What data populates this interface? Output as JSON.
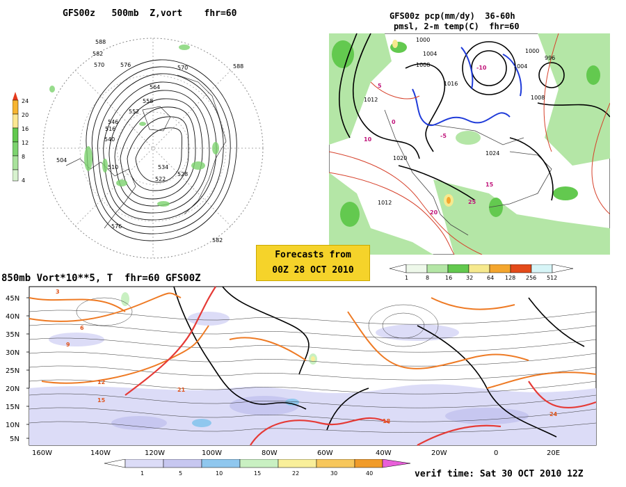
{
  "panel_500mb": {
    "title": "GFS00z   500mb  Z,vort    fhr=60",
    "colorbar": [
      {
        "label": "24",
        "color": "#e53a1c"
      },
      {
        "label": "20",
        "color": "#f7b531"
      },
      {
        "label": "16",
        "color": "#fce792"
      },
      {
        "label": "12",
        "color": "#7dd36f"
      },
      {
        "label": "8",
        "color": "#a9e29c"
      },
      {
        "label": "4",
        "color": "#d8f2cf"
      }
    ],
    "contour_labels": [
      "588",
      "582",
      "570",
      "576",
      "564",
      "558",
      "552",
      "546",
      "540",
      "534",
      "528",
      "522",
      "516",
      "510",
      "504",
      "570",
      "576",
      "582",
      "588"
    ]
  },
  "panel_pcp": {
    "title_line1": "GFS00z pcp(mm/dy)  36-60h",
    "title_line2": "pmsl, 2-m temp(C)  fhr=60",
    "colorbar": [
      {
        "label": "1",
        "color": "#eef8ea"
      },
      {
        "label": "8",
        "color": "#b4e6a6"
      },
      {
        "label": "16",
        "color": "#63c94f"
      },
      {
        "label": "32",
        "color": "#f6e98e"
      },
      {
        "label": "64",
        "color": "#f4a62e"
      },
      {
        "label": "128",
        "color": "#e44b1a"
      },
      {
        "label": "256",
        "color": "#d7f5f7"
      },
      {
        "label": "512",
        "color": "#ffffff"
      }
    ],
    "isobar_labels": [
      "1000",
      "1004",
      "1008",
      "1012",
      "1016",
      "1020",
      "1024",
      "1012",
      "1008",
      "1004",
      "1000",
      "996"
    ],
    "temp_labels": [
      "-10",
      "-5",
      "0",
      "5",
      "10",
      "15",
      "20",
      "25"
    ]
  },
  "forecast_box": {
    "line1": "Forecasts from",
    "line2": "00Z 28 OCT 2010"
  },
  "panel_850mb": {
    "title": "850mb Vort*10**5, T  fhr=60 GFS00Z",
    "lat_labels": [
      "45N",
      "40N",
      "35N",
      "30N",
      "25N",
      "20N",
      "15N",
      "10N",
      "5N"
    ],
    "lon_labels": [
      "160W",
      "140W",
      "120W",
      "100W",
      "80W",
      "60W",
      "40W",
      "20W",
      "0",
      "20E"
    ],
    "colorbar": [
      {
        "label": "1",
        "color": "#dcdcf7"
      },
      {
        "label": "5",
        "color": "#c7c7f0"
      },
      {
        "label": "10",
        "color": "#8fc7ee"
      },
      {
        "label": "15",
        "color": "#c9f0c2"
      },
      {
        "label": "22",
        "color": "#f9ef9a"
      },
      {
        "label": "30",
        "color": "#f7c75c"
      },
      {
        "label": "40",
        "color": "#f09b2a"
      }
    ],
    "temp_labels": [
      "3",
      "6",
      "9",
      "12",
      "15",
      "18",
      "21",
      "24"
    ]
  },
  "verif_time": "verif time: Sat 30 OCT 2010 12Z"
}
